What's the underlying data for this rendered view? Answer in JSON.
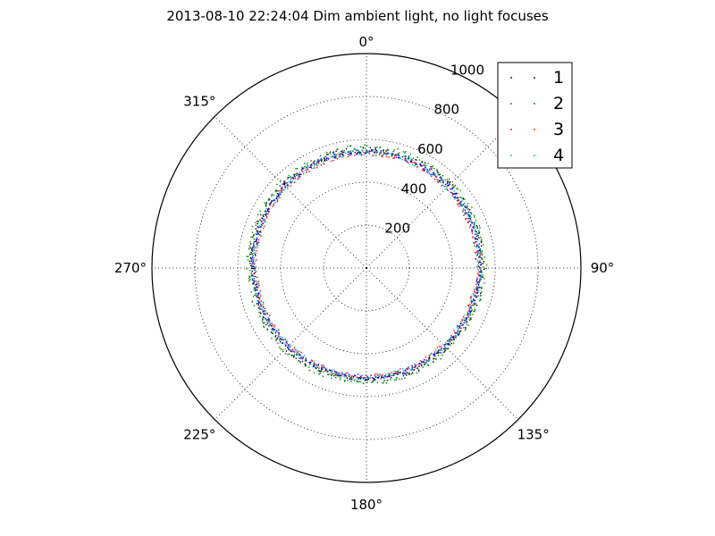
{
  "chart_data": {
    "type": "scatter",
    "projection": "polar",
    "title": "2013-08-10 22:24:04 Dim ambient light, no light focuses",
    "theta_zero_location": "top",
    "theta_direction": "clockwise",
    "r_lim": [
      0,
      1000
    ],
    "r_ticks": [
      200,
      400,
      600,
      800,
      1000
    ],
    "r_tick_labels": [
      "200",
      "400",
      "600",
      "800",
      "1000"
    ],
    "theta_ticks_deg": [
      0,
      45,
      90,
      135,
      180,
      225,
      270,
      315
    ],
    "theta_tick_labels": [
      "0°",
      "",
      "90°",
      "135°",
      "180°",
      "225°",
      "270°",
      "315°"
    ],
    "grid": true,
    "legend": {
      "placement": "top-right",
      "entries": [
        "1",
        "2",
        "3",
        "4"
      ]
    },
    "series": [
      {
        "name": "1",
        "color": "#000000",
        "theta_deg_step": 2,
        "r_mean": 535,
        "r_jitter": 14,
        "r_amp": 15
      },
      {
        "name": "2",
        "color": "#008000",
        "theta_deg_step": 2,
        "r_mean": 545,
        "r_jitter": 16,
        "r_amp": 15
      },
      {
        "name": "3",
        "color": "#ff0000",
        "theta_deg_step": 2,
        "r_mean": 520,
        "r_jitter": 12,
        "r_amp": 15
      },
      {
        "name": "4",
        "color": "#00bfbf",
        "theta_deg_step": 2,
        "r_mean": 525,
        "r_jitter": 12,
        "r_amp": 15
      },
      {
        "name": "",
        "color": "#0000ff",
        "theta_deg_step": 2,
        "r_mean": 528,
        "r_jitter": 10,
        "r_amp": 15
      }
    ]
  }
}
